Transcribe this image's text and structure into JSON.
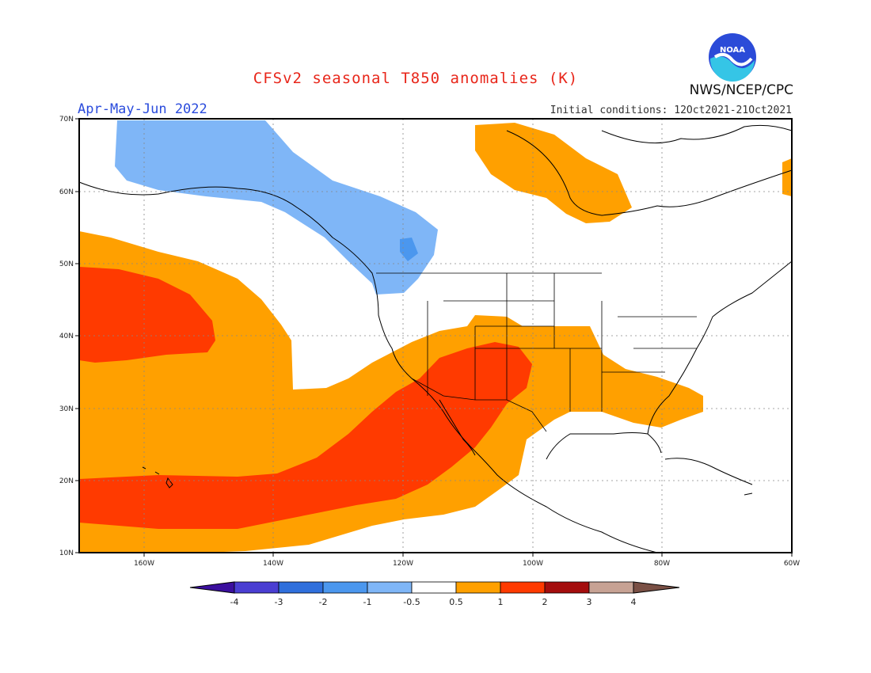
{
  "header": {
    "title": "CFSv2 seasonal T850 anomalies (K)",
    "period": "Apr-May-Jun 2022",
    "initial_conditions": "Initial conditions: 12Oct2021-21Oct2021",
    "agency": "NWS/NCEP/CPC",
    "logo_text": "NOAA"
  },
  "map": {
    "lat_labels": [
      "70N",
      "60N",
      "50N",
      "40N",
      "30N",
      "20N",
      "10N"
    ],
    "lon_labels": [
      "160W",
      "140W",
      "120W",
      "100W",
      "80W",
      "60W"
    ]
  },
  "colorbar": {
    "labels": [
      "-4",
      "-3",
      "-2",
      "-1",
      "-0.5",
      "0.5",
      "1",
      "2",
      "3",
      "4"
    ],
    "colors": [
      "#3b0f9e",
      "#4a3ed2",
      "#2f6fdc",
      "#4b97ee",
      "#7fb6f7",
      "#ffffff",
      "#ffa000",
      "#ff3a00",
      "#a40d0d",
      "#c7a294",
      "#7a5045"
    ]
  }
}
